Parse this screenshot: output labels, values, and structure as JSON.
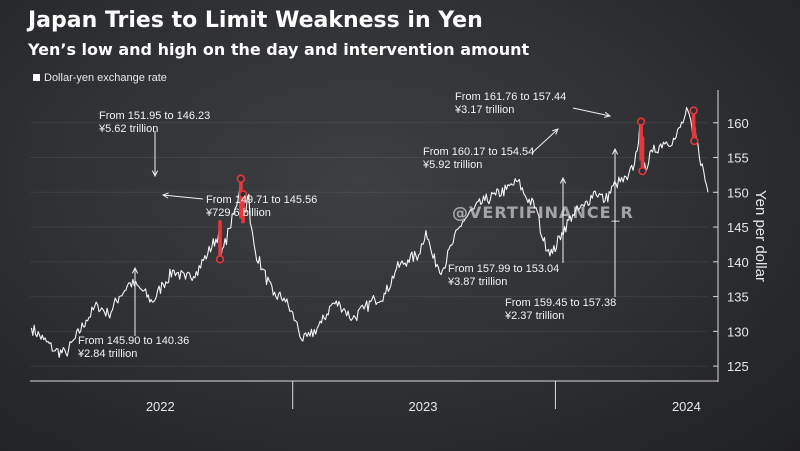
{
  "header": {
    "title": "Japan Tries to Limit Weakness in Yen",
    "subtitle": "Yen’s low and high on the day and intervention amount"
  },
  "watermark": "@VERTIFINANCE_R",
  "colors": {
    "line": "#ffffff",
    "intervention": "#e8373b",
    "axis": "#d9d9d9"
  },
  "chart_data": {
    "type": "line",
    "legend": [
      "Dollar-yen exchange rate"
    ],
    "ylabel": "Yen per dollar",
    "yticks": [
      125,
      130,
      135,
      140,
      145,
      150,
      155,
      160
    ],
    "ylim": [
      123,
      165
    ],
    "xlim": [
      "2022-01-01",
      "2024-07-31"
    ],
    "xticks": [
      {
        "label": "2022",
        "date": "2022-07-01"
      },
      {
        "label": "2023",
        "date": "2023-07-01"
      },
      {
        "label": "2024",
        "date": "2024-07-01"
      }
    ],
    "series": [
      {
        "name": "Dollar-yen exchange rate",
        "points": [
          [
            "2022-01-03",
            130.5
          ],
          [
            "2022-01-20",
            128.8
          ],
          [
            "2022-02-05",
            127.2
          ],
          [
            "2022-02-20",
            126.8
          ],
          [
            "2022-03-05",
            129.0
          ],
          [
            "2022-03-20",
            131.6
          ],
          [
            "2022-04-05",
            133.8
          ],
          [
            "2022-04-20",
            132.4
          ],
          [
            "2022-05-05",
            135.0
          ],
          [
            "2022-05-20",
            137.0
          ],
          [
            "2022-06-05",
            136.0
          ],
          [
            "2022-06-20",
            134.2
          ],
          [
            "2022-07-05",
            136.8
          ],
          [
            "2022-07-20",
            138.8
          ],
          [
            "2022-08-05",
            137.5
          ],
          [
            "2022-08-20",
            138.6
          ],
          [
            "2022-09-05",
            141.2
          ],
          [
            "2022-09-20",
            144.0
          ],
          [
            "2022-09-22",
            145.9
          ],
          [
            "2022-09-23",
            140.4
          ],
          [
            "2022-10-05",
            144.8
          ],
          [
            "2022-10-15",
            148.0
          ],
          [
            "2022-10-21",
            151.95
          ],
          [
            "2022-10-24",
            146.2
          ],
          [
            "2022-11-01",
            149.7
          ],
          [
            "2022-11-03",
            145.6
          ],
          [
            "2022-11-10",
            141.5
          ],
          [
            "2022-11-20",
            139.0
          ],
          [
            "2022-12-05",
            135.2
          ],
          [
            "2022-12-20",
            134.8
          ],
          [
            "2023-01-05",
            131.5
          ],
          [
            "2023-01-15",
            128.6
          ],
          [
            "2023-01-25",
            129.3
          ],
          [
            "2023-02-10",
            131.2
          ],
          [
            "2023-02-25",
            134.0
          ],
          [
            "2023-03-08",
            133.8
          ],
          [
            "2023-03-15",
            133.0
          ],
          [
            "2023-03-25",
            131.8
          ],
          [
            "2023-04-10",
            133.2
          ],
          [
            "2023-04-25",
            134.6
          ],
          [
            "2023-05-10",
            135.4
          ],
          [
            "2023-05-25",
            139.0
          ],
          [
            "2023-06-10",
            140.3
          ],
          [
            "2023-06-25",
            141.0
          ],
          [
            "2023-07-05",
            144.5
          ],
          [
            "2023-07-15",
            140.5
          ],
          [
            "2023-07-28",
            138.8
          ],
          [
            "2023-08-10",
            142.4
          ],
          [
            "2023-08-25",
            145.8
          ],
          [
            "2023-09-10",
            147.6
          ],
          [
            "2023-09-25",
            148.8
          ],
          [
            "2023-10-10",
            149.6
          ],
          [
            "2023-10-25",
            150.4
          ],
          [
            "2023-11-10",
            151.6
          ],
          [
            "2023-11-20",
            149.5
          ],
          [
            "2023-12-05",
            147.8
          ],
          [
            "2023-12-15",
            143.0
          ],
          [
            "2023-12-28",
            141.2
          ],
          [
            "2024-01-10",
            144.2
          ],
          [
            "2024-01-25",
            146.8
          ],
          [
            "2024-02-10",
            148.0
          ],
          [
            "2024-02-25",
            150.2
          ],
          [
            "2024-03-10",
            148.8
          ],
          [
            "2024-03-25",
            151.3
          ],
          [
            "2024-04-10",
            151.8
          ],
          [
            "2024-04-20",
            154.2
          ],
          [
            "2024-04-29",
            160.17
          ],
          [
            "2024-04-30",
            154.5
          ],
          [
            "2024-05-01",
            157.99
          ],
          [
            "2024-05-02",
            153.04
          ],
          [
            "2024-05-15",
            155.8
          ],
          [
            "2024-05-30",
            157.2
          ],
          [
            "2024-06-15",
            157.6
          ],
          [
            "2024-06-28",
            160.6
          ],
          [
            "2024-07-03",
            161.76
          ],
          [
            "2024-07-11",
            157.44
          ],
          [
            "2024-07-12",
            159.45
          ],
          [
            "2024-07-15",
            157.38
          ],
          [
            "2024-07-31",
            150.0
          ]
        ]
      }
    ],
    "interventions": [
      {
        "date": "2022-09-22",
        "from": 145.9,
        "to": 140.36,
        "label": "From 145.90 to 140.36",
        "amount": "¥2.84 trillion"
      },
      {
        "date": "2022-10-21",
        "from": 151.95,
        "to": 146.23,
        "label": "From 151.95 to 146.23",
        "amount": "¥5.62 trillion"
      },
      {
        "date": "2022-10-24",
        "from": 149.71,
        "to": 145.56,
        "label": "From 149.71 to 145.56",
        "amount": "¥729.6 billion"
      },
      {
        "date": "2024-04-29",
        "from": 160.17,
        "to": 154.54,
        "label": "From 160.17 to 154.54",
        "amount": "¥5.92 trillion"
      },
      {
        "date": "2024-05-01",
        "from": 157.99,
        "to": 153.04,
        "label": "From 157.99 to 153.04",
        "amount": "¥3.87 trillion"
      },
      {
        "date": "2024-07-11",
        "from": 161.76,
        "to": 157.44,
        "label": "From 161.76 to 157.44",
        "amount": "¥3.17 trillion"
      },
      {
        "date": "2024-07-12",
        "from": 159.45,
        "to": 157.38,
        "label": "From 159.45 to 157.38",
        "amount": "¥2.37 trillion"
      }
    ]
  }
}
